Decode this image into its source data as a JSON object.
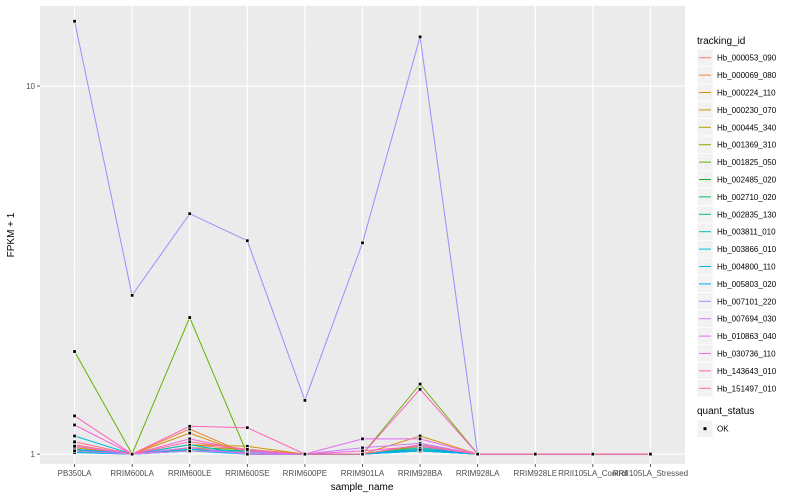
{
  "chart_data": {
    "type": "line",
    "xlabel": "sample_name",
    "ylabel": "FPKM + 1",
    "y_scale": "log10",
    "ylim": [
      0.94,
      16.5
    ],
    "y_ticks": [
      1,
      10
    ],
    "y_tick_labels": [
      "1",
      "10"
    ],
    "grid": true,
    "legend_position": "right",
    "categories": [
      "PB350LA",
      "RRIM600LA",
      "RRIM600LE",
      "RRIM600SE",
      "RRIM600PE",
      "RRIM901LA",
      "RRIM928BA",
      "RRIM928LA",
      "RRIM928LE",
      "RRII105LA_Control",
      "RRII105LA_Stressed"
    ],
    "category_labels": [
      "PB350LA",
      "RRIM600LA",
      "RRIM600LE",
      "RRIM600SE",
      "RRIM600PE",
      "RRIM901LA",
      "RRIM928BA",
      "RRIM928LA",
      "RRIM928LE",
      "RRII105LA_Control",
      "RRII105LA_Stressed"
    ],
    "legend_title": "tracking_id",
    "series": [
      {
        "name": "Hb_000053_090",
        "color": "#F8766D",
        "values": [
          1.06,
          1.0,
          1.06,
          1.03,
          1.0,
          1.0,
          1.03,
          1.0,
          1.0,
          1.0,
          1.0
        ]
      },
      {
        "name": "Hb_000069_080",
        "color": "#EC8239",
        "values": [
          1.05,
          1.0,
          1.17,
          1.0,
          1.0,
          1.0,
          1.05,
          1.0,
          1.0,
          1.0,
          1.0
        ]
      },
      {
        "name": "Hb_000224_110",
        "color": "#DB8E00",
        "values": [
          1.03,
          1.0,
          1.14,
          1.0,
          1.0,
          1.0,
          1.12,
          1.0,
          1.0,
          1.0,
          1.0
        ]
      },
      {
        "name": "Hb_000230_070",
        "color": "#C79800",
        "values": [
          1.04,
          1.0,
          1.06,
          1.05,
          1.0,
          1.0,
          1.04,
          1.0,
          1.0,
          1.0,
          1.0
        ]
      },
      {
        "name": "Hb_000445_340",
        "color": "#AEA200",
        "values": [
          1.02,
          1.0,
          1.03,
          1.02,
          1.0,
          1.0,
          1.02,
          1.0,
          1.0,
          1.0,
          1.0
        ]
      },
      {
        "name": "Hb_001369_310",
        "color": "#8FAA00",
        "values": [
          1.03,
          1.0,
          1.04,
          1.03,
          1.0,
          1.0,
          1.05,
          1.0,
          1.0,
          1.0,
          1.0
        ]
      },
      {
        "name": "Hb_001825_050",
        "color": "#64B200",
        "values": [
          1.9,
          1.0,
          2.35,
          1.0,
          1.0,
          1.0,
          1.55,
          1.0,
          1.0,
          1.0,
          1.0
        ]
      },
      {
        "name": "Hb_002485_020",
        "color": "#00B813",
        "values": [
          1.02,
          1.0,
          1.03,
          1.02,
          1.0,
          1.0,
          1.03,
          1.0,
          1.0,
          1.0,
          1.0
        ]
      },
      {
        "name": "Hb_002710_020",
        "color": "#00BD5C",
        "values": [
          1.01,
          1.0,
          1.02,
          1.01,
          1.0,
          1.0,
          1.02,
          1.0,
          1.0,
          1.0,
          1.0
        ]
      },
      {
        "name": "Hb_002835_130",
        "color": "#00C08E",
        "values": [
          1.02,
          1.0,
          1.02,
          1.02,
          1.0,
          1.0,
          1.02,
          1.0,
          1.0,
          1.0,
          1.0
        ]
      },
      {
        "name": "Hb_003811_010",
        "color": "#00C1B7",
        "values": [
          1.03,
          1.0,
          1.03,
          1.02,
          1.0,
          1.0,
          1.04,
          1.0,
          1.0,
          1.0,
          1.0
        ]
      },
      {
        "name": "Hb_003866_010",
        "color": "#00BDDC",
        "values": [
          1.12,
          1.0,
          1.06,
          1.0,
          1.0,
          1.0,
          1.06,
          1.0,
          1.0,
          1.0,
          1.0
        ]
      },
      {
        "name": "Hb_004800_110",
        "color": "#00B4F0",
        "values": [
          1.01,
          1.0,
          1.02,
          1.0,
          1.0,
          1.0,
          1.02,
          1.0,
          1.0,
          1.0,
          1.0
        ]
      },
      {
        "name": "Hb_005803_020",
        "color": "#00A5FF",
        "values": [
          1.03,
          1.0,
          1.04,
          1.0,
          1.0,
          1.0,
          1.03,
          1.0,
          1.0,
          1.0,
          1.0
        ]
      },
      {
        "name": "Hb_007101_220",
        "color": "#9590FF",
        "values": [
          15.0,
          2.7,
          4.5,
          3.8,
          1.4,
          3.75,
          13.6,
          1.0,
          1.0,
          1.0,
          1.0
        ]
      },
      {
        "name": "Hb_007694_030",
        "color": "#C77CFF",
        "values": [
          1.02,
          1.0,
          1.02,
          1.01,
          1.0,
          1.04,
          1.07,
          1.0,
          1.0,
          1.0,
          1.0
        ]
      },
      {
        "name": "Hb_010863_040",
        "color": "#E76BF3",
        "values": [
          1.05,
          1.0,
          1.04,
          1.0,
          1.0,
          1.1,
          1.1,
          1.0,
          1.0,
          1.0,
          1.0
        ]
      },
      {
        "name": "Hb_030736_110",
        "color": "#FA62DB",
        "values": [
          1.2,
          1.0,
          1.1,
          1.02,
          1.0,
          1.02,
          1.05,
          1.0,
          1.0,
          1.0,
          1.0
        ]
      },
      {
        "name": "Hb_143643_010",
        "color": "#FF62BC",
        "values": [
          1.27,
          1.0,
          1.19,
          1.18,
          1.0,
          1.0,
          1.5,
          1.0,
          1.0,
          1.0,
          1.0
        ]
      },
      {
        "name": "Hb_151497_010",
        "color": "#FF6C91",
        "values": [
          1.08,
          1.0,
          1.08,
          1.03,
          1.0,
          1.0,
          1.06,
          1.0,
          1.0,
          1.0,
          1.0
        ]
      }
    ],
    "legend2_title": "quant_status",
    "legend2_items": [
      {
        "label": "OK",
        "marker": "square",
        "color": "#000000"
      }
    ]
  }
}
